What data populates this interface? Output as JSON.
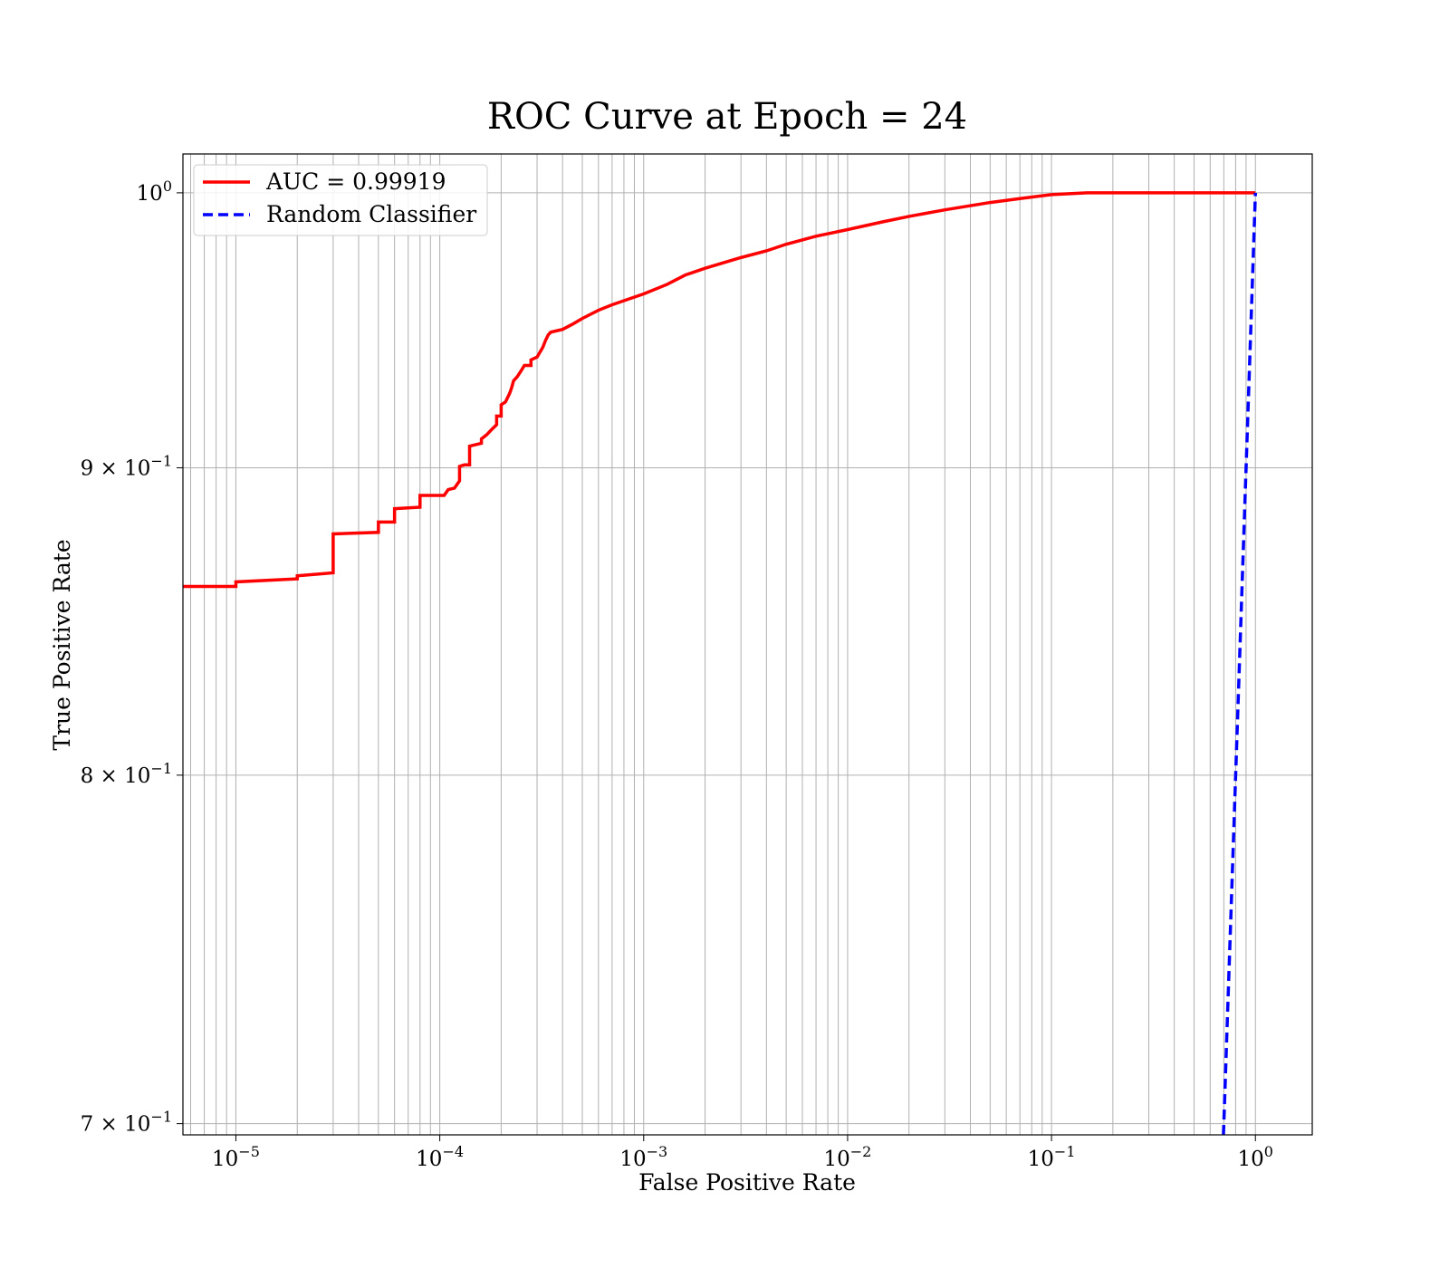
{
  "chart_data": {
    "type": "line",
    "title": "ROC Curve at Epoch = 24",
    "xlabel": "False Positive Rate",
    "ylabel": "True Positive Rate",
    "xscale": "log",
    "yscale": "log",
    "xlim": [
      5.5e-06,
      1.9
    ],
    "ylim": [
      0.697,
      1.015
    ],
    "grid": "both (major and minor)",
    "legend_position": "top-left",
    "x_ticks": [
      {
        "value": 1e-05,
        "base": "10",
        "exp": "−5"
      },
      {
        "value": 0.0001,
        "base": "10",
        "exp": "−4"
      },
      {
        "value": 0.001,
        "base": "10",
        "exp": "−3"
      },
      {
        "value": 0.01,
        "base": "10",
        "exp": "−2"
      },
      {
        "value": 0.1,
        "base": "10",
        "exp": "−1"
      },
      {
        "value": 1,
        "base": "10",
        "exp": "0"
      }
    ],
    "y_ticks": [
      {
        "value": 1.0,
        "base": "10",
        "exp": "0"
      },
      {
        "value": 0.9,
        "base": "9 × 10",
        "exp": "−1"
      },
      {
        "value": 0.8,
        "base": "8 × 10",
        "exp": "−1"
      },
      {
        "value": 0.7,
        "base": "7 × 10",
        "exp": "−1"
      }
    ],
    "series": [
      {
        "name": "AUC = 0.99919",
        "color": "#ff0000",
        "style": "solid",
        "x": [
          5.5e-06,
          1e-05,
          1e-05,
          2e-05,
          2e-05,
          3e-05,
          3e-05,
          5e-05,
          5e-05,
          6e-05,
          6e-05,
          8e-05,
          8e-05,
          0.000105,
          0.00011,
          0.000118,
          0.000125,
          0.000125,
          0.000132,
          0.00014,
          0.00014,
          0.00016,
          0.00016,
          0.00017,
          0.000178,
          0.00019,
          0.00019,
          0.0002,
          0.0002,
          0.00021,
          0.00022,
          0.000225,
          0.00023,
          0.00024,
          0.00025,
          0.00026,
          0.00028,
          0.00028,
          0.0003,
          0.00032,
          0.00033,
          0.00034,
          0.00035,
          0.0004,
          0.00045,
          0.0005,
          0.0006,
          0.0007,
          0.0008,
          0.001,
          0.0013,
          0.0016,
          0.002,
          0.003,
          0.004,
          0.005,
          0.007,
          0.01,
          0.015,
          0.02,
          0.03,
          0.05,
          0.07,
          0.1,
          0.15,
          0.2,
          0.3,
          0.5,
          0.7,
          1.0
        ],
        "y": [
          0.86,
          0.86,
          0.8615,
          0.8625,
          0.8635,
          0.8645,
          0.8775,
          0.878,
          0.8815,
          0.8815,
          0.886,
          0.8865,
          0.8905,
          0.8905,
          0.8925,
          0.893,
          0.8955,
          0.9005,
          0.901,
          0.901,
          0.9075,
          0.9085,
          0.91,
          0.9115,
          0.913,
          0.915,
          0.918,
          0.918,
          0.922,
          0.923,
          0.926,
          0.928,
          0.9305,
          0.932,
          0.934,
          0.936,
          0.936,
          0.938,
          0.939,
          0.9425,
          0.945,
          0.947,
          0.948,
          0.949,
          0.951,
          0.953,
          0.956,
          0.958,
          0.9595,
          0.962,
          0.9655,
          0.969,
          0.9715,
          0.9755,
          0.978,
          0.9805,
          0.9835,
          0.986,
          0.989,
          0.991,
          0.9935,
          0.9963,
          0.9978,
          0.9993,
          1.0,
          1.0,
          1.0,
          1.0,
          1.0,
          1.0
        ]
      },
      {
        "name": "Random Classifier",
        "color": "#0000ff",
        "style": "dashed",
        "x": [
          0.697,
          1.0
        ],
        "y": [
          0.697,
          1.0
        ]
      }
    ]
  }
}
